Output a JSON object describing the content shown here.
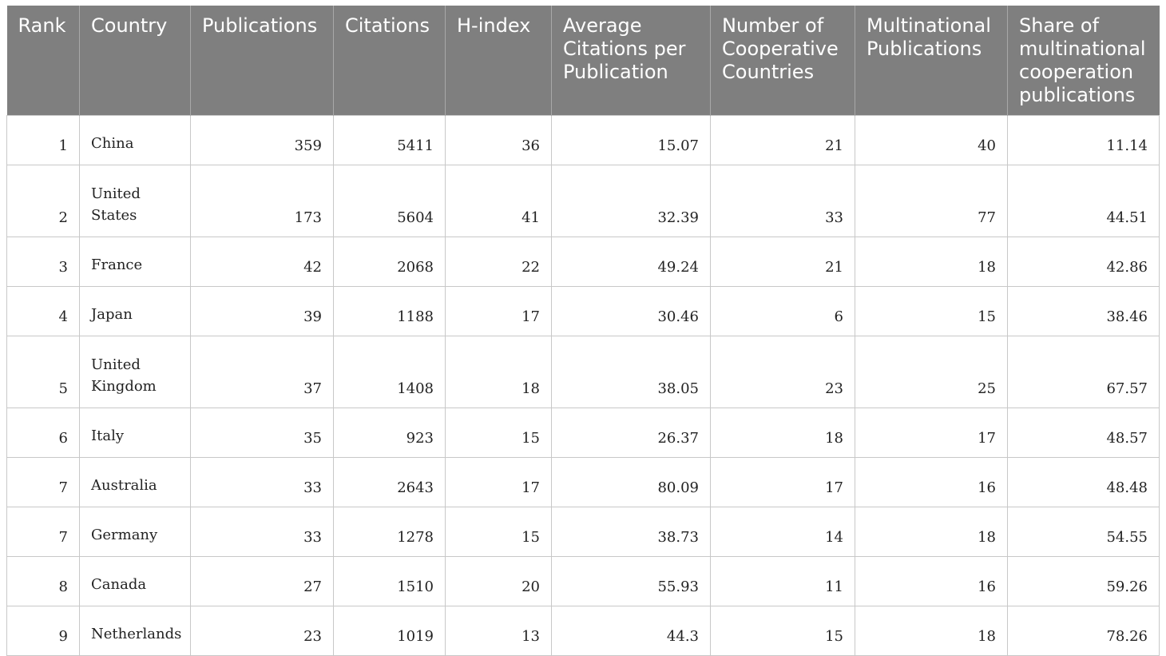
{
  "table": {
    "headers": [
      "Rank",
      "Country",
      "Publications",
      "Citations",
      "H-index",
      "Average Citations per Publication",
      "Number of Cooperative Countries",
      "Multinational Publications",
      "Share of multinational cooperation publications"
    ],
    "rows": [
      [
        "1",
        "China",
        "359",
        "5411",
        "36",
        "15.07",
        "21",
        "40",
        "11.14"
      ],
      [
        "2",
        "United States",
        "173",
        "5604",
        "41",
        "32.39",
        "33",
        "77",
        "44.51"
      ],
      [
        "3",
        "France",
        "42",
        "2068",
        "22",
        "49.24",
        "21",
        "18",
        "42.86"
      ],
      [
        "4",
        "Japan",
        "39",
        "1188",
        "17",
        "30.46",
        "6",
        "15",
        "38.46"
      ],
      [
        "5",
        "United Kingdom",
        "37",
        "1408",
        "18",
        "38.05",
        "23",
        "25",
        "67.57"
      ],
      [
        "6",
        "Italy",
        "35",
        "923",
        "15",
        "26.37",
        "18",
        "17",
        "48.57"
      ],
      [
        "7",
        "Australia",
        "33",
        "2643",
        "17",
        "80.09",
        "17",
        "16",
        "48.48"
      ],
      [
        "7",
        "Germany",
        "33",
        "1278",
        "15",
        "38.73",
        "14",
        "18",
        "54.55"
      ],
      [
        "8",
        "Canada",
        "27",
        "1510",
        "20",
        "55.93",
        "11",
        "16",
        "59.26"
      ],
      [
        "9",
        "Netherlands",
        "23",
        "1019",
        "13",
        "44.3",
        "15",
        "18",
        "78.26"
      ]
    ]
  },
  "colors": {
    "header_background": "#7f7f7f",
    "header_text": "#ffffff",
    "grid_line": "#c8c8c8"
  }
}
